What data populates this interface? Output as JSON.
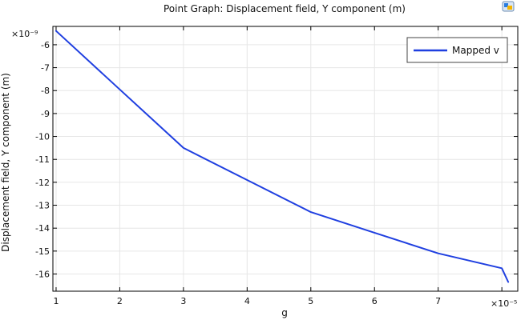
{
  "chart_data": {
    "type": "line",
    "title": "Point Graph: Displacement field, Y component (m)",
    "xlabel": "g",
    "ylabel": "Displacement field, Y component (m)",
    "x_exponent_label": "×10⁻⁵",
    "y_exponent_label": "×10⁻⁹",
    "xlim": [
      0.95,
      8.25
    ],
    "ylim": [
      -16.75,
      -5.2
    ],
    "x_ticks": [
      1,
      2,
      3,
      4,
      5,
      6,
      7,
      8
    ],
    "x_tick_labels": [
      "1",
      "2",
      "3",
      "4",
      "5",
      "6",
      "7",
      ""
    ],
    "y_ticks": [
      -6,
      -7,
      -8,
      -9,
      -10,
      -11,
      -12,
      -13,
      -14,
      -15,
      -16
    ],
    "y_tick_labels": [
      "-6",
      "-7",
      "-8",
      "-9",
      "-10",
      "-11",
      "-12",
      "-13",
      "-14",
      "-15",
      "-16"
    ],
    "grid": true,
    "legend_position": "top-right",
    "series": [
      {
        "name": "Mapped v",
        "color": "#1f3fe0",
        "x": [
          1,
          2,
          3,
          4,
          5,
          6,
          7,
          8,
          8.1
        ],
        "y": [
          -5.4,
          -7.95,
          -10.5,
          -11.9,
          -13.3,
          -14.2,
          -15.1,
          -15.75,
          -16.35
        ]
      }
    ]
  },
  "colors": {
    "grid": "#e6e6e6",
    "axis": "#000000",
    "background": "#ffffff"
  },
  "icons": {
    "corner": "app-logo-icon"
  }
}
